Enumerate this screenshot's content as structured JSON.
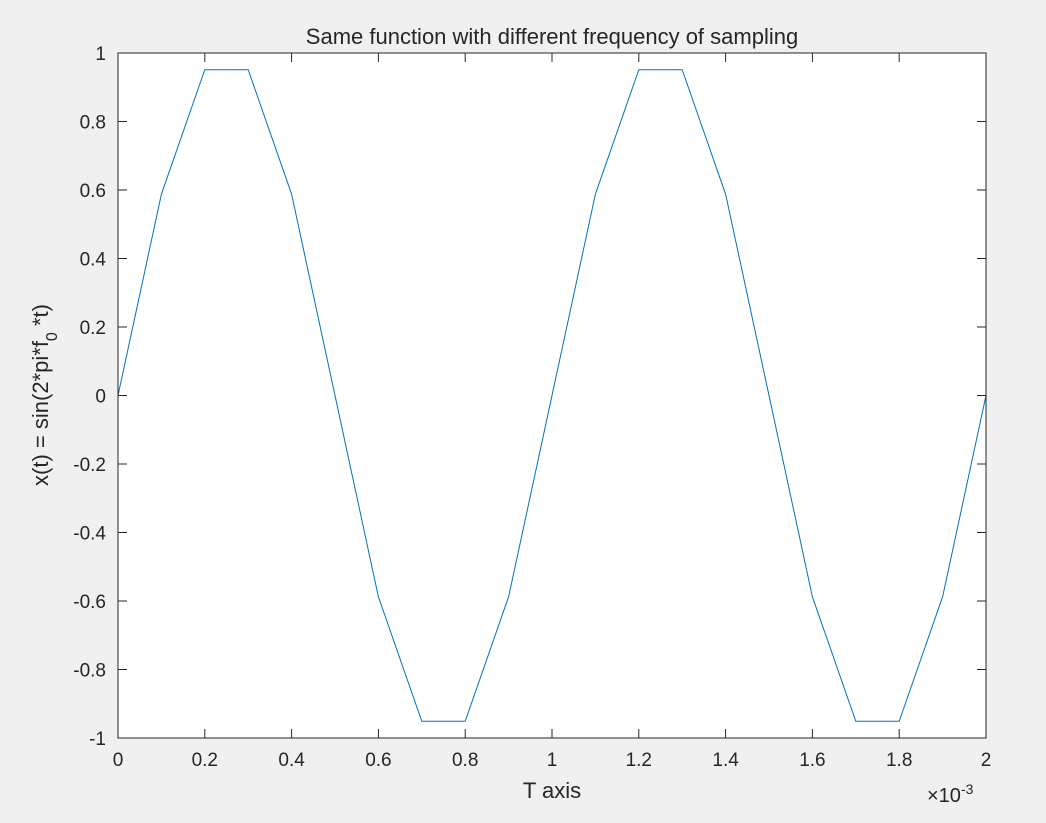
{
  "chart_data": {
    "type": "line",
    "title": "Same function with different frequency of sampling",
    "xlabel": "T axis",
    "ylabel": {
      "before": "x(t) = sin(2*pi*f",
      "subscript": "0",
      "after": " *t)"
    },
    "xlim": [
      0,
      0.002
    ],
    "ylim": [
      -1,
      1
    ],
    "x_exponent_label": {
      "prefix": "×10",
      "exponent": "-3"
    },
    "x_ticks": [
      {
        "value": 0,
        "label": "0"
      },
      {
        "value": 0.0002,
        "label": "0.2"
      },
      {
        "value": 0.0004,
        "label": "0.4"
      },
      {
        "value": 0.0006,
        "label": "0.6"
      },
      {
        "value": 0.0008,
        "label": "0.8"
      },
      {
        "value": 0.001,
        "label": "1"
      },
      {
        "value": 0.0012,
        "label": "1.2"
      },
      {
        "value": 0.0014,
        "label": "1.4"
      },
      {
        "value": 0.0016,
        "label": "1.6"
      },
      {
        "value": 0.0018,
        "label": "1.8"
      },
      {
        "value": 0.002,
        "label": "2"
      }
    ],
    "y_ticks": [
      {
        "value": 1,
        "label": "1"
      },
      {
        "value": 0.8,
        "label": "0.8"
      },
      {
        "value": 0.6,
        "label": "0.6"
      },
      {
        "value": 0.4,
        "label": "0.4"
      },
      {
        "value": 0.2,
        "label": "0.2"
      },
      {
        "value": 0,
        "label": "0"
      },
      {
        "value": -0.2,
        "label": "-0.2"
      },
      {
        "value": -0.4,
        "label": "-0.4"
      },
      {
        "value": -0.6,
        "label": "-0.6"
      },
      {
        "value": -0.8,
        "label": "-0.8"
      },
      {
        "value": -1,
        "label": "-1"
      }
    ],
    "grid": false,
    "series": [
      {
        "color": "#0072bd",
        "x": [
          0,
          0.0001,
          0.0002,
          0.0003,
          0.0004,
          0.0005,
          0.0006,
          0.0007,
          0.0008,
          0.0009,
          0.001,
          0.0011,
          0.0012,
          0.0013,
          0.0014,
          0.0015,
          0.0016,
          0.0017,
          0.0018,
          0.0019,
          0.002
        ],
        "y": [
          0,
          0.5878,
          0.9511,
          0.9511,
          0.5878,
          0,
          -0.5878,
          -0.9511,
          -0.9511,
          -0.5878,
          0,
          0.5878,
          0.9511,
          0.9511,
          0.5878,
          0,
          -0.5878,
          -0.9511,
          -0.9511,
          -0.5878,
          0
        ]
      }
    ]
  }
}
